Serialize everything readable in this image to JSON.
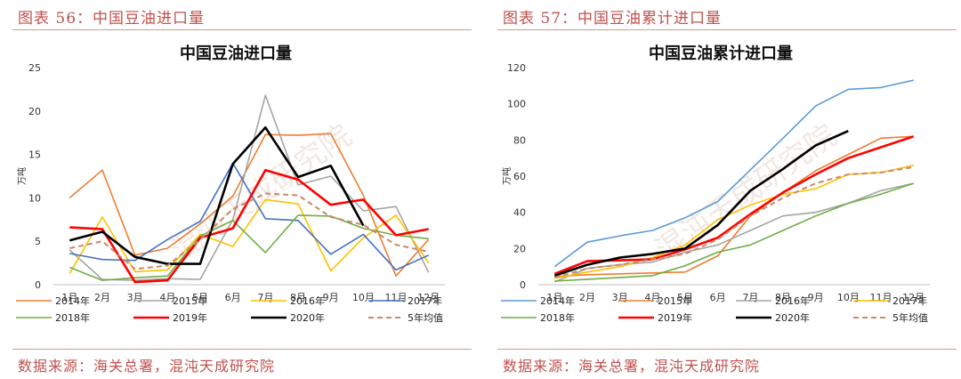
{
  "left": {
    "fig_title": "图表 56：中国豆油进口量",
    "source": "数据来源：海关总署，混沌天成研究院",
    "chart_data": {
      "type": "line",
      "title": "中国豆油进口量",
      "ylabel": "万吨",
      "ylim": [
        0,
        25
      ],
      "yticks": [
        0,
        5,
        10,
        15,
        20,
        25
      ],
      "categories": [
        "1月",
        "2月",
        "3月",
        "4月",
        "5月",
        "6月",
        "7月",
        "8月",
        "9月",
        "10月",
        "11月",
        "12月"
      ],
      "series": [
        {
          "name": "2014年",
          "color": "#ed7d31",
          "width": 1.6,
          "dash": "",
          "values": [
            10,
            13.2,
            3.4,
            4.2,
            7,
            10.2,
            17.3,
            17.2,
            17.4,
            10.3,
            1,
            5.2
          ]
        },
        {
          "name": "2015年",
          "color": "#a5a5a5",
          "width": 1.6,
          "dash": "",
          "values": [
            4,
            0.6,
            0.5,
            0.7,
            0.6,
            7.5,
            21.8,
            11.5,
            12.5,
            8.5,
            9,
            1.4
          ]
        },
        {
          "name": "2016年",
          "color": "#ffc000",
          "width": 1.6,
          "dash": "",
          "values": [
            1.3,
            7.8,
            1.5,
            1.7,
            5.8,
            4.4,
            9.8,
            9.3,
            1.6,
            5.4,
            8,
            2.5
          ]
        },
        {
          "name": "2017年",
          "color": "#4472c4",
          "width": 1.6,
          "dash": "",
          "values": [
            3.6,
            2.9,
            2.8,
            5.2,
            7.3,
            14,
            7.6,
            7.4,
            3.5,
            5.8,
            1.7,
            3.4
          ]
        },
        {
          "name": "2018年",
          "color": "#70ad47",
          "width": 1.6,
          "dash": "",
          "values": [
            2,
            0.5,
            0.8,
            1,
            5.6,
            7.4,
            3.7,
            8,
            7.9,
            6.5,
            5.7,
            5.3
          ]
        },
        {
          "name": "2019年",
          "color": "#ff0000",
          "width": 2.6,
          "dash": "",
          "values": [
            6.6,
            6.4,
            0.3,
            0.5,
            5.4,
            6.5,
            13.2,
            12.1,
            9.2,
            9.8,
            5.7,
            6.4
          ]
        },
        {
          "name": "2020年",
          "color": "#000000",
          "width": 2.6,
          "dash": "",
          "values": [
            5.1,
            6.1,
            3.2,
            2.4,
            2.4,
            13.9,
            18.1,
            12.4,
            13.7,
            6.8,
            null,
            null
          ]
        },
        {
          "name": "5年均值",
          "color": "#c98a6a",
          "width": 2,
          "dash": "6,4",
          "values": [
            4.2,
            5,
            1.8,
            2.2,
            5.2,
            8.7,
            10.5,
            10.3,
            7.8,
            6.9,
            4.6,
            3.8
          ]
        }
      ]
    }
  },
  "right": {
    "fig_title": "图表 57：中国豆油累计进口量",
    "source": "数据来源：海关总署，混沌天成研究院",
    "chart_data": {
      "type": "line",
      "title": "中国豆油累计进口量",
      "ylabel": "万吨",
      "ylim": [
        0,
        120
      ],
      "yticks": [
        0,
        20,
        40,
        60,
        80,
        100,
        120
      ],
      "categories": [
        "1月",
        "2月",
        "3月",
        "4月",
        "5月",
        "6月",
        "7月",
        "8月",
        "9月",
        "10月",
        "11月",
        "12月"
      ],
      "series": [
        {
          "name": "2014年",
          "color": "#5b9bd5",
          "width": 1.6,
          "dash": "",
          "values": [
            10,
            23.5,
            27,
            30,
            37,
            46,
            63.5,
            81,
            98.8,
            108,
            109,
            113
          ]
        },
        {
          "name": "2015年",
          "color": "#ed7d31",
          "width": 1.6,
          "dash": "",
          "values": [
            4.5,
            5.5,
            6,
            6.5,
            7,
            16,
            38,
            51,
            63,
            72,
            81,
            82
          ]
        },
        {
          "name": "2016年",
          "color": "#a5a5a5",
          "width": 1.6,
          "dash": "",
          "values": [
            1.5,
            9,
            11,
            12.5,
            18,
            22,
            30,
            38,
            40,
            45,
            52,
            56
          ]
        },
        {
          "name": "2017年",
          "color": "#ffc000",
          "width": 1.6,
          "dash": "",
          "values": [
            3.5,
            7,
            10,
            15,
            22,
            36,
            44,
            50,
            53,
            61,
            62,
            66
          ]
        },
        {
          "name": "2018年",
          "color": "#70ad47",
          "width": 1.6,
          "dash": "",
          "values": [
            2,
            3,
            4,
            5,
            10.5,
            18,
            22,
            30,
            38,
            45,
            50,
            56
          ]
        },
        {
          "name": "2019年",
          "color": "#ff0000",
          "width": 2.6,
          "dash": "",
          "values": [
            6,
            13,
            13.5,
            14,
            19.5,
            26,
            39,
            51,
            61,
            70,
            76,
            82
          ]
        },
        {
          "name": "2020年",
          "color": "#000000",
          "width": 2.6,
          "dash": "",
          "values": [
            5,
            11,
            15,
            17,
            20,
            33,
            52,
            64,
            77,
            85,
            null,
            null
          ]
        },
        {
          "name": "5年均值",
          "color": "#c98a6a",
          "width": 2,
          "dash": "6,4",
          "values": [
            4,
            9,
            11,
            14,
            17,
            25,
            38,
            48,
            56,
            61,
            62,
            65
          ]
        }
      ]
    }
  },
  "watermark": "混沌天成研究院"
}
